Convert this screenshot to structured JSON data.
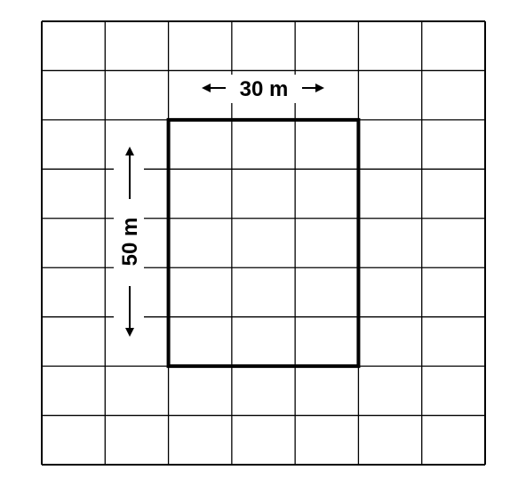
{
  "diagram": {
    "grid": {
      "columns": 7,
      "rows": 9,
      "line_color": "#000000"
    },
    "highlight": {
      "start_column": 2,
      "start_row": 2,
      "columns": 3,
      "rows": 5,
      "border_color": "#000000"
    },
    "width_label": "30 m",
    "height_label": "50 m"
  }
}
